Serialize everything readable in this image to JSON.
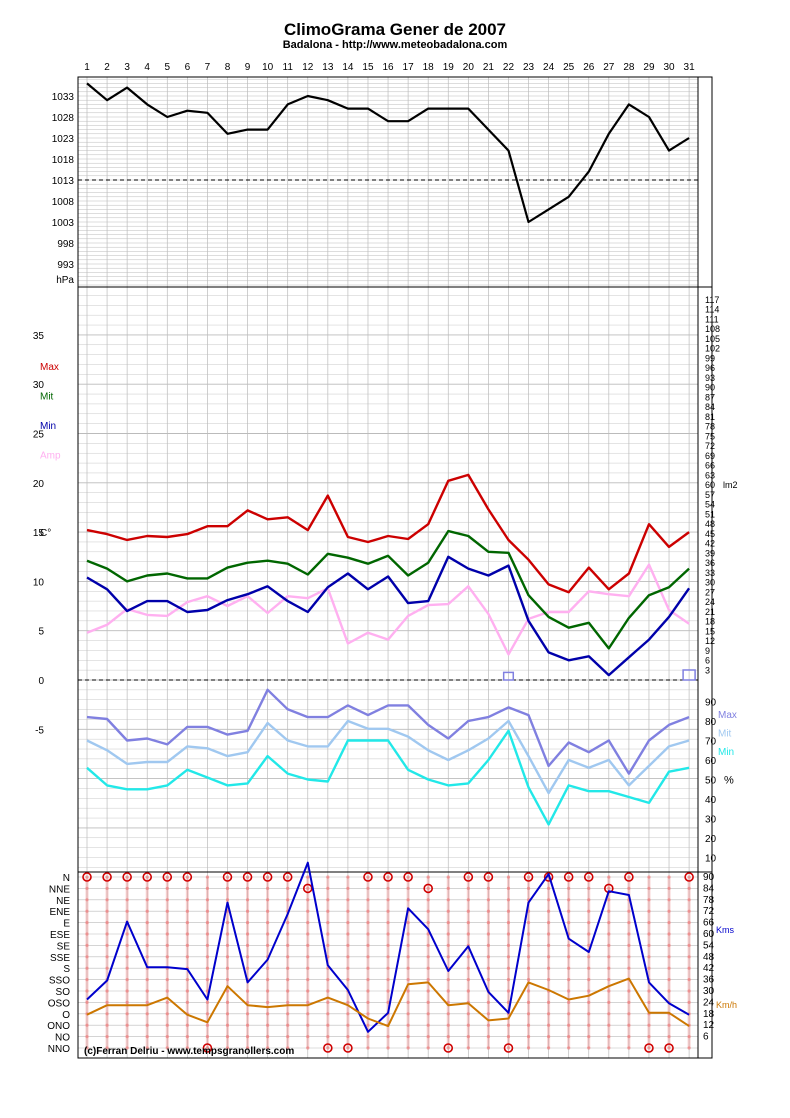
{
  "title": "ClimoGrama Gener de 2007",
  "subtitle": "Badalona - http://www.meteobadalona.com",
  "credit": "(c)Ferran Delriu - www.tempsgranollers.com",
  "colors": {
    "pressure": "#000000",
    "max": "#cc0000",
    "mit": "#006600",
    "min": "#0000aa",
    "amp": "#ffb0f0",
    "hum_max": "#8080e0",
    "hum_mit": "#a0c8f0",
    "hum_min": "#22e8e8",
    "wind": "#0000cc",
    "gust": "#cc7700",
    "dir": "#f08080",
    "grid": "#bbbbbb"
  },
  "chart_data": [
    {
      "type": "line",
      "name": "pressure",
      "x": [
        1,
        2,
        3,
        4,
        5,
        6,
        7,
        8,
        9,
        10,
        11,
        12,
        13,
        14,
        15,
        16,
        17,
        18,
        19,
        20,
        21,
        22,
        23,
        24,
        25,
        26,
        27,
        28,
        29,
        30,
        31
      ],
      "x_tick_labels": [
        "1",
        "2",
        "3",
        "4",
        "5",
        "6",
        "7",
        "8",
        "9",
        "10",
        "11",
        "12",
        "13",
        "14",
        "15",
        "16",
        "17",
        "18",
        "19",
        "20",
        "21",
        "22",
        "23",
        "24",
        "25",
        "26",
        "27",
        "28",
        "29",
        "30",
        "31"
      ],
      "y_tick_labels": [
        "1033",
        "1028",
        "1023",
        "1018",
        "1013",
        "1008",
        "1003",
        "998",
        "993"
      ],
      "ylabel": "hPa",
      "ylim": [
        988,
        1038
      ],
      "reference_line": 1013,
      "series": [
        {
          "values": [
            1036,
            1032,
            1035,
            1031,
            1028,
            1029.5,
            1029,
            1024,
            1025,
            1025,
            1031,
            1033,
            1032,
            1030,
            1030,
            1027,
            1027,
            1030,
            1030,
            1030,
            1025,
            1020,
            1003,
            1006,
            1009,
            1015,
            1024,
            1031,
            1028,
            1020,
            1023
          ]
        }
      ]
    },
    {
      "type": "line",
      "name": "temperature",
      "x": [
        1,
        2,
        3,
        4,
        5,
        6,
        7,
        8,
        9,
        10,
        11,
        12,
        13,
        14,
        15,
        16,
        17,
        18,
        19,
        20,
        21,
        22,
        23,
        24,
        25,
        26,
        27,
        28,
        29,
        30,
        31
      ],
      "ylabel": "C°",
      "ylim": [
        -15,
        40
      ],
      "y_tick_labels": [
        "35",
        "30",
        "25",
        "20",
        "15",
        "10",
        "5",
        "0",
        "-5"
      ],
      "y_tick_values": [
        35,
        30,
        25,
        20,
        15,
        10,
        5,
        0,
        -5
      ],
      "reference_line": 0,
      "legend": [
        "Max",
        "Mit",
        "Min",
        "Amp"
      ],
      "series": [
        {
          "name": "Max",
          "values": [
            15.2,
            14.8,
            14.2,
            14.6,
            14.5,
            14.8,
            15.6,
            15.6,
            17.2,
            16.3,
            16.5,
            15.2,
            18.7,
            14.5,
            14.0,
            14.6,
            14.3,
            15.8,
            20.2,
            20.8,
            17.3,
            14.2,
            12.2,
            9.7,
            8.9,
            11.4,
            9.2,
            10.8,
            15.8,
            13.5,
            15.0
          ]
        },
        {
          "name": "Mit",
          "values": [
            12.1,
            11.3,
            10.0,
            10.6,
            10.8,
            10.3,
            10.3,
            11.4,
            11.9,
            12.1,
            11.8,
            10.7,
            12.8,
            12.4,
            11.8,
            12.6,
            10.6,
            11.9,
            15.1,
            14.6,
            13.0,
            12.9,
            8.6,
            6.4,
            5.3,
            5.8,
            3.2,
            6.3,
            8.6,
            9.4,
            11.3
          ]
        },
        {
          "name": "Min",
          "values": [
            10.4,
            9.2,
            7.0,
            8.0,
            8.0,
            6.9,
            7.1,
            8.1,
            8.7,
            9.5,
            8.0,
            6.9,
            9.4,
            10.8,
            9.2,
            10.5,
            7.8,
            8.0,
            12.5,
            11.3,
            10.6,
            11.6,
            6.0,
            2.8,
            2.0,
            2.4,
            0.5,
            2.3,
            4.1,
            6.4,
            9.3
          ]
        },
        {
          "name": "Amp",
          "values": [
            4.8,
            5.6,
            7.2,
            6.6,
            6.5,
            7.9,
            8.5,
            7.5,
            8.5,
            6.8,
            8.5,
            8.3,
            9.3,
            3.7,
            4.8,
            4.1,
            6.5,
            7.6,
            7.7,
            9.5,
            6.7,
            2.6,
            6.2,
            6.9,
            6.9,
            9.0,
            8.7,
            8.5,
            11.7,
            7.1,
            5.7
          ]
        }
      ]
    },
    {
      "type": "bar",
      "name": "rain",
      "x": [
        22,
        31
      ],
      "ylabel": "lm2",
      "y_tick_labels": [
        "117",
        "114",
        "111",
        "108",
        "105",
        "102",
        "99",
        "96",
        "93",
        "90",
        "87",
        "84",
        "81",
        "78",
        "75",
        "72",
        "69",
        "66",
        "63",
        "60",
        "57",
        "54",
        "51",
        "48",
        "45",
        "42",
        "39",
        "36",
        "33",
        "30",
        "27",
        "24",
        "21",
        "18",
        "15",
        "12",
        "9",
        "6",
        "3"
      ],
      "ylim": [
        0,
        120
      ],
      "values": [
        0.6,
        1.0
      ]
    },
    {
      "type": "line",
      "name": "humidity",
      "x": [
        1,
        2,
        3,
        4,
        5,
        6,
        7,
        8,
        9,
        10,
        11,
        12,
        13,
        14,
        15,
        16,
        17,
        18,
        19,
        20,
        21,
        22,
        23,
        24,
        25,
        26,
        27,
        28,
        29,
        30,
        31
      ],
      "ylabel": "%",
      "ylim": [
        0,
        100
      ],
      "y_tick_labels": [
        "90",
        "80",
        "70",
        "60",
        "50",
        "40",
        "30",
        "20",
        "10"
      ],
      "y_tick_values": [
        90,
        80,
        70,
        60,
        50,
        40,
        30,
        20,
        10
      ],
      "legend": [
        "Max",
        "Mit",
        "Min"
      ],
      "series": [
        {
          "name": "Max",
          "values": [
            82,
            81,
            70,
            71,
            68,
            77,
            77,
            73,
            75,
            96,
            86,
            82,
            82,
            88,
            83,
            88,
            88,
            78,
            71,
            80,
            82,
            87,
            83,
            57,
            69,
            64,
            70,
            53,
            70,
            78,
            82
          ]
        },
        {
          "name": "Mit",
          "values": [
            70,
            65,
            58,
            59,
            59,
            67,
            66,
            62,
            64,
            79,
            70,
            67,
            67,
            80,
            76,
            76,
            72,
            65,
            60,
            65,
            71,
            80,
            62,
            43,
            60,
            56,
            60,
            47,
            57,
            67,
            70
          ]
        },
        {
          "name": "Min",
          "values": [
            56,
            47,
            45,
            45,
            47,
            55,
            51,
            47,
            48,
            62,
            53,
            50,
            49,
            70,
            70,
            70,
            55,
            50,
            47,
            48,
            60,
            75,
            46,
            27,
            47,
            44,
            44,
            41,
            38,
            54,
            56
          ]
        }
      ]
    },
    {
      "type": "line",
      "name": "wind",
      "x": [
        1,
        2,
        3,
        4,
        5,
        6,
        7,
        8,
        9,
        10,
        11,
        12,
        13,
        14,
        15,
        16,
        17,
        18,
        19,
        20,
        21,
        22,
        23,
        24,
        25,
        26,
        27,
        28,
        29,
        30,
        31
      ],
      "y_tick_labels_left": [
        "N",
        "NNE",
        "NE",
        "ENE",
        "E",
        "ESE",
        "SE",
        "SSE",
        "S",
        "SSO",
        "SO",
        "OSO",
        "O",
        "ONO",
        "NO",
        "NNO"
      ],
      "y_tick_labels_right": [
        "90",
        "84",
        "78",
        "72",
        "66",
        "60",
        "54",
        "48",
        "42",
        "36",
        "30",
        "24",
        "18",
        "12",
        "6"
      ],
      "units": [
        "Kms",
        "Km/h"
      ],
      "ylim": [
        0,
        96
      ],
      "series": [
        {
          "name": "Kms",
          "values": [
            25,
            35,
            66,
            42,
            42,
            41,
            25,
            76,
            34,
            46,
            70,
            97,
            43,
            30,
            8,
            18,
            73,
            62,
            40,
            53,
            29,
            18,
            76,
            91,
            57,
            50,
            82,
            80,
            34,
            23,
            17
          ]
        },
        {
          "name": "Km/h",
          "values": [
            17,
            22,
            22,
            22,
            26,
            17,
            13,
            32,
            22,
            21,
            22,
            22,
            26,
            22,
            15,
            11,
            33,
            34,
            22,
            23,
            14,
            15,
            34,
            30,
            25,
            27,
            32,
            36,
            18,
            18,
            11
          ]
        }
      ],
      "max_direction": [
        "N",
        "N",
        "N",
        "N",
        "N",
        "N",
        "NNO",
        "N",
        "N",
        "N",
        "N",
        "NNE",
        "NNO",
        "NNO",
        "N",
        "N",
        "N",
        "NNE",
        "NNO",
        "N",
        "N",
        "NNO",
        "N",
        "N",
        "N",
        "N",
        "NNE",
        "N",
        "NNO",
        "NNO",
        "N"
      ]
    }
  ]
}
